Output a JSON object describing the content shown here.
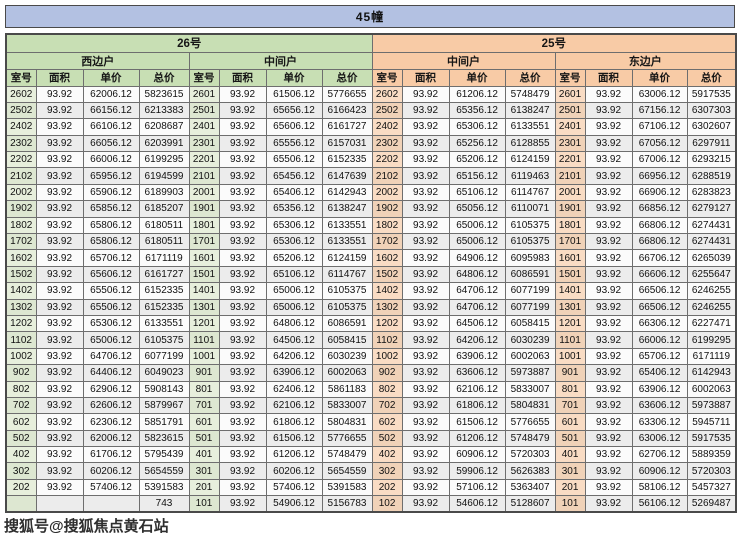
{
  "title": "45幢",
  "watermark": "搜狐号@搜狐焦点黄石站",
  "colors": {
    "title_bar_bg": "#b3c1e2",
    "unit26_bg": "#c8dfb4",
    "unit25_bg": "#f8cba6",
    "room_cell_green": "#e7efdc",
    "room_cell_orange": "#f9dcc4",
    "stripe_gray": "#ececec",
    "grid_line": "#6e6e6e"
  },
  "table": {
    "groups": [
      {
        "label": "26号",
        "subgroups": [
          "西边户",
          "中间户"
        ]
      },
      {
        "label": "25号",
        "subgroups": [
          "中间户",
          "东边户"
        ]
      }
    ],
    "columns": [
      "室号",
      "面积",
      "单价",
      "总价"
    ],
    "rows": [
      [
        "2602",
        "93.92",
        "62006.12",
        "5823615",
        "2601",
        "93.92",
        "61506.12",
        "5776655",
        "2602",
        "93.92",
        "61206.12",
        "5748479",
        "2601",
        "93.92",
        "63006.12",
        "5917535"
      ],
      [
        "2502",
        "93.92",
        "66156.12",
        "6213383",
        "2501",
        "93.92",
        "65656.12",
        "6166423",
        "2502",
        "93.92",
        "65356.12",
        "6138247",
        "2501",
        "93.92",
        "67156.12",
        "6307303"
      ],
      [
        "2402",
        "93.92",
        "66106.12",
        "6208687",
        "2401",
        "93.92",
        "65606.12",
        "6161727",
        "2402",
        "93.92",
        "65306.12",
        "6133551",
        "2401",
        "93.92",
        "67106.12",
        "6302607"
      ],
      [
        "2302",
        "93.92",
        "66056.12",
        "6203991",
        "2301",
        "93.92",
        "65556.12",
        "6157031",
        "2302",
        "93.92",
        "65256.12",
        "6128855",
        "2301",
        "93.92",
        "67056.12",
        "6297911"
      ],
      [
        "2202",
        "93.92",
        "66006.12",
        "6199295",
        "2201",
        "93.92",
        "65506.12",
        "6152335",
        "2202",
        "93.92",
        "65206.12",
        "6124159",
        "2201",
        "93.92",
        "67006.12",
        "6293215"
      ],
      [
        "2102",
        "93.92",
        "65956.12",
        "6194599",
        "2101",
        "93.92",
        "65456.12",
        "6147639",
        "2102",
        "93.92",
        "65156.12",
        "6119463",
        "2101",
        "93.92",
        "66956.12",
        "6288519"
      ],
      [
        "2002",
        "93.92",
        "65906.12",
        "6189903",
        "2001",
        "93.92",
        "65406.12",
        "6142943",
        "2002",
        "93.92",
        "65106.12",
        "6114767",
        "2001",
        "93.92",
        "66906.12",
        "6283823"
      ],
      [
        "1902",
        "93.92",
        "65856.12",
        "6185207",
        "1901",
        "93.92",
        "65356.12",
        "6138247",
        "1902",
        "93.92",
        "65056.12",
        "6110071",
        "1901",
        "93.92",
        "66856.12",
        "6279127"
      ],
      [
        "1802",
        "93.92",
        "65806.12",
        "6180511",
        "1801",
        "93.92",
        "65306.12",
        "6133551",
        "1802",
        "93.92",
        "65006.12",
        "6105375",
        "1801",
        "93.92",
        "66806.12",
        "6274431"
      ],
      [
        "1702",
        "93.92",
        "65806.12",
        "6180511",
        "1701",
        "93.92",
        "65306.12",
        "6133551",
        "1702",
        "93.92",
        "65006.12",
        "6105375",
        "1701",
        "93.92",
        "66806.12",
        "6274431"
      ],
      [
        "1602",
        "93.92",
        "65706.12",
        "6171119",
        "1601",
        "93.92",
        "65206.12",
        "6124159",
        "1602",
        "93.92",
        "64906.12",
        "6095983",
        "1601",
        "93.92",
        "66706.12",
        "6265039"
      ],
      [
        "1502",
        "93.92",
        "65606.12",
        "6161727",
        "1501",
        "93.92",
        "65106.12",
        "6114767",
        "1502",
        "93.92",
        "64806.12",
        "6086591",
        "1501",
        "93.92",
        "66606.12",
        "6255647"
      ],
      [
        "1402",
        "93.92",
        "65506.12",
        "6152335",
        "1401",
        "93.92",
        "65006.12",
        "6105375",
        "1402",
        "93.92",
        "64706.12",
        "6077199",
        "1401",
        "93.92",
        "66506.12",
        "6246255"
      ],
      [
        "1302",
        "93.92",
        "65506.12",
        "6152335",
        "1301",
        "93.92",
        "65006.12",
        "6105375",
        "1302",
        "93.92",
        "64706.12",
        "6077199",
        "1301",
        "93.92",
        "66506.12",
        "6246255"
      ],
      [
        "1202",
        "93.92",
        "65306.12",
        "6133551",
        "1201",
        "93.92",
        "64806.12",
        "6086591",
        "1202",
        "93.92",
        "64506.12",
        "6058415",
        "1201",
        "93.92",
        "66306.12",
        "6227471"
      ],
      [
        "1102",
        "93.92",
        "65006.12",
        "6105375",
        "1101",
        "93.92",
        "64506.12",
        "6058415",
        "1102",
        "93.92",
        "64206.12",
        "6030239",
        "1101",
        "93.92",
        "66006.12",
        "6199295"
      ],
      [
        "1002",
        "93.92",
        "64706.12",
        "6077199",
        "1001",
        "93.92",
        "64206.12",
        "6030239",
        "1002",
        "93.92",
        "63906.12",
        "6002063",
        "1001",
        "93.92",
        "65706.12",
        "6171119"
      ],
      [
        "902",
        "93.92",
        "64406.12",
        "6049023",
        "901",
        "93.92",
        "63906.12",
        "6002063",
        "902",
        "93.92",
        "63606.12",
        "5973887",
        "901",
        "93.92",
        "65406.12",
        "6142943"
      ],
      [
        "802",
        "93.92",
        "62906.12",
        "5908143",
        "801",
        "93.92",
        "62406.12",
        "5861183",
        "802",
        "93.92",
        "62106.12",
        "5833007",
        "801",
        "93.92",
        "63906.12",
        "6002063"
      ],
      [
        "702",
        "93.92",
        "62606.12",
        "5879967",
        "701",
        "93.92",
        "62106.12",
        "5833007",
        "702",
        "93.92",
        "61806.12",
        "5804831",
        "701",
        "93.92",
        "63606.12",
        "5973887"
      ],
      [
        "602",
        "93.92",
        "62306.12",
        "5851791",
        "601",
        "93.92",
        "61806.12",
        "5804831",
        "602",
        "93.92",
        "61506.12",
        "5776655",
        "601",
        "93.92",
        "63306.12",
        "5945711"
      ],
      [
        "502",
        "93.92",
        "62006.12",
        "5823615",
        "501",
        "93.92",
        "61506.12",
        "5776655",
        "502",
        "93.92",
        "61206.12",
        "5748479",
        "501",
        "93.92",
        "63006.12",
        "5917535"
      ],
      [
        "402",
        "93.92",
        "61706.12",
        "5795439",
        "401",
        "93.92",
        "61206.12",
        "5748479",
        "402",
        "93.92",
        "60906.12",
        "5720303",
        "401",
        "93.92",
        "62706.12",
        "5889359"
      ],
      [
        "302",
        "93.92",
        "60206.12",
        "5654559",
        "301",
        "93.92",
        "60206.12",
        "5654559",
        "302",
        "93.92",
        "59906.12",
        "5626383",
        "301",
        "93.92",
        "60906.12",
        "5720303"
      ],
      [
        "202",
        "93.92",
        "57406.12",
        "5391583",
        "201",
        "93.92",
        "57406.12",
        "5391583",
        "202",
        "93.92",
        "57106.12",
        "5363407",
        "201",
        "93.92",
        "58106.12",
        "5457327"
      ],
      [
        "",
        "",
        "",
        "743",
        "101",
        "93.92",
        "54906.12",
        "5156783",
        "102",
        "93.92",
        "54606.12",
        "5128607",
        "101",
        "93.92",
        "56106.12",
        "5269487"
      ]
    ]
  }
}
